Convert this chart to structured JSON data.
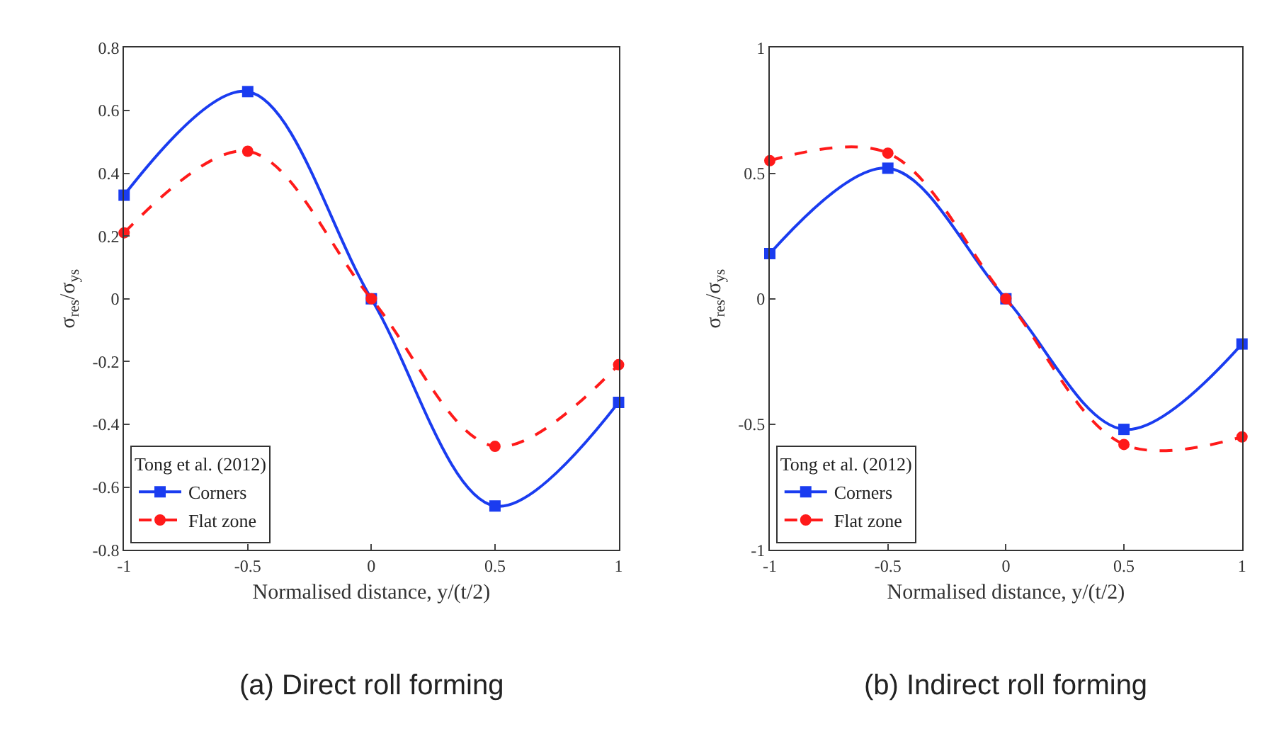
{
  "chart_data": [
    {
      "type": "line",
      "xlabel": "Normalised distance, y/(t/2)",
      "ylabel": "σ$_{res}$/σ$_{ys}$",
      "legend_title": "Tong et al. (2012)",
      "legend": "bottom left",
      "x": [
        -1,
        -0.5,
        0,
        0.5,
        1
      ],
      "xlim": [
        -1,
        1
      ],
      "xticks": [
        -1,
        -0.5,
        0,
        0.5,
        1
      ],
      "ylim": [
        -0.8,
        0.8
      ],
      "yticks": [
        -0.8,
        -0.6,
        -0.4,
        -0.2,
        0,
        0.2,
        0.4,
        0.6,
        0.8
      ],
      "annotations": [
        "(a) Direct roll forming"
      ],
      "series": [
        {
          "name": "Corners",
          "color": "#1a3cf0",
          "marker": "square",
          "line_style": "solid",
          "values": [
            0.33,
            0.66,
            0,
            -0.66,
            -0.33
          ]
        },
        {
          "name": "Flat zone",
          "color": "#ff1a1a",
          "marker": "circle",
          "line_style": "dashed",
          "values": [
            0.21,
            0.47,
            0,
            -0.47,
            -0.21
          ]
        }
      ]
    },
    {
      "type": "line",
      "xlabel": "Normalised distance, y/(t/2)",
      "ylabel": "σ$_{res}$/σ$_{ys}$",
      "legend_title": "Tong et al. (2012)",
      "legend": "bottom left",
      "x": [
        -1,
        -0.5,
        0,
        0.5,
        1
      ],
      "xlim": [
        -1,
        1
      ],
      "xticks": [
        -1,
        -0.5,
        0,
        0.5,
        1
      ],
      "ylim": [
        -1,
        1
      ],
      "yticks": [
        -1,
        -0.5,
        0,
        0.5,
        1
      ],
      "annotations": [
        "(b) Indirect roll forming"
      ],
      "series": [
        {
          "name": "Corners",
          "color": "#1a3cf0",
          "marker": "square",
          "line_style": "solid",
          "values": [
            0.18,
            0.52,
            0,
            -0.52,
            -0.18
          ]
        },
        {
          "name": "Flat zone",
          "color": "#ff1a1a",
          "marker": "circle",
          "line_style": "dashed",
          "values": [
            0.55,
            0.58,
            0,
            -0.58,
            -0.55
          ]
        }
      ]
    }
  ]
}
